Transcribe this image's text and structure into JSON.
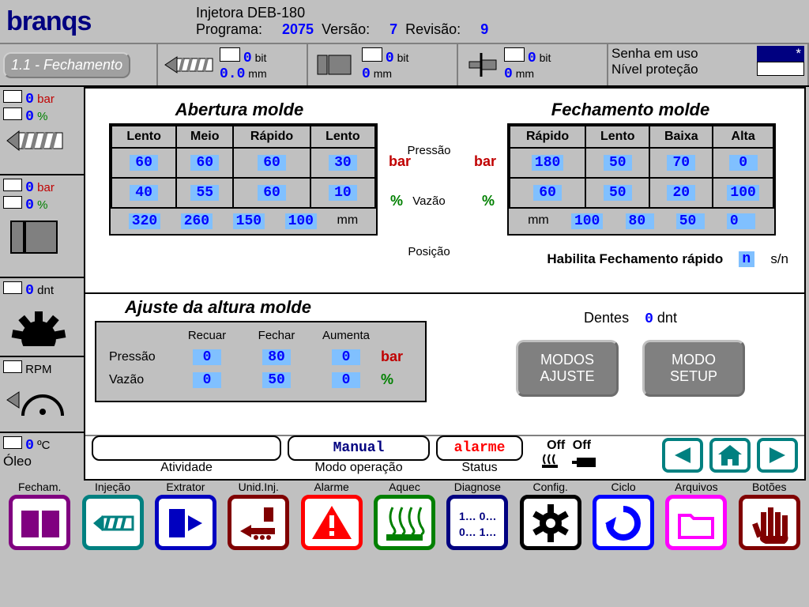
{
  "header": {
    "logo": "branqs",
    "machine": "Injetora DEB-180",
    "programa_label": "Programa:",
    "programa": "2075",
    "versao_label": "Versão:",
    "versao": "7",
    "revisao_label": "Revisão:",
    "revisao": "9"
  },
  "page_btn": "1.1 - Fechamento",
  "status_readouts": [
    {
      "v1": "0",
      "u1": "bit",
      "v2": "0.0",
      "u2": "mm",
      "icon": "screw"
    },
    {
      "v1": "0",
      "u1": "bit",
      "v2": "0",
      "u2": "mm",
      "icon": "mold"
    },
    {
      "v1": "0",
      "u1": "bit",
      "v2": "0",
      "u2": "mm",
      "icon": "eject"
    }
  ],
  "senha_label": "Senha em uso",
  "nivel_label": "Nível proteção",
  "sidebar": [
    {
      "v1": "0",
      "u1": "bar",
      "u1c": "red",
      "v2": "0",
      "u2": "%",
      "u2c": "green",
      "icon": "screw"
    },
    {
      "v1": "0",
      "u1": "bar",
      "u1c": "red",
      "v2": "0",
      "u2": "%",
      "u2c": "green",
      "icon": "mold"
    },
    {
      "v1": "0",
      "u1": "dnt",
      "icon": "gear"
    },
    {
      "u1": "RPM",
      "icon": "dial"
    }
  ],
  "abertura": {
    "title": "Abertura molde",
    "cols": [
      "Lento",
      "Meio",
      "Rápido",
      "Lento"
    ],
    "pressao": [
      "60",
      "60",
      "60",
      "30"
    ],
    "vazao": [
      "40",
      "55",
      "60",
      "10"
    ],
    "pos": [
      "320",
      "260",
      "150",
      "100"
    ],
    "unit_p": "bar",
    "unit_v": "%",
    "unit_pos": "mm"
  },
  "mid_labels": {
    "p": "Pressão",
    "v": "Vazão",
    "pos": "Posição"
  },
  "fechamento": {
    "title": "Fechamento molde",
    "cols": [
      "Rápido",
      "Lento",
      "Baixa",
      "Alta"
    ],
    "pressao": [
      "180",
      "50",
      "70",
      "0"
    ],
    "vazao": [
      "60",
      "50",
      "20",
      "100"
    ],
    "pos": [
      "100",
      "80",
      "50",
      "0"
    ],
    "unit_p": "bar",
    "unit_v": "%",
    "unit_pos": "mm"
  },
  "habilita": {
    "label": "Habilita Fechamento rápido",
    "val": "n",
    "unit": "s/n"
  },
  "ajuste": {
    "title": "Ajuste da altura molde",
    "cols": [
      "Recuar",
      "Fechar",
      "Aumenta"
    ],
    "row_p": "Pressão",
    "row_v": "Vazão",
    "pressao": [
      "0",
      "80",
      "0"
    ],
    "vazao": [
      "0",
      "50",
      "0"
    ],
    "unit_p": "bar",
    "unit_v": "%"
  },
  "dentes": {
    "label": "Dentes",
    "val": "0",
    "unit": "dnt"
  },
  "modos_btn": "MODOS AJUSTE",
  "modo_setup_btn": "MODO SETUP",
  "oleo": {
    "val": "0",
    "unit": "ºC",
    "label": "Óleo"
  },
  "atividade": {
    "label": "Atividade",
    "val": ""
  },
  "modo_op": {
    "label": "Modo operação",
    "val": "Manual"
  },
  "status": {
    "label": "Status",
    "val": "alarme"
  },
  "heat": {
    "a": "Off",
    "b": "Off"
  },
  "nav": [
    {
      "label": "Fecham.",
      "color": "#800080"
    },
    {
      "label": "Injeção",
      "color": "#008080"
    },
    {
      "label": "Extrator",
      "color": "#0000c0"
    },
    {
      "label": "Unid.Inj.",
      "color": "#800000"
    },
    {
      "label": "Alarme",
      "color": "#ff0000"
    },
    {
      "label": "Aquec",
      "color": "#008000"
    },
    {
      "label": "Diagnose",
      "color": "#000080"
    },
    {
      "label": "Config.",
      "color": "#000000"
    },
    {
      "label": "Ciclo",
      "color": "#0000ff"
    },
    {
      "label": "Arquivos",
      "color": "#ff00ff"
    },
    {
      "label": "Botões",
      "color": "#800000"
    }
  ],
  "colors": {
    "bg": "#c0c0c0",
    "blue": "#0000ff",
    "red": "#c00000",
    "green": "#008000",
    "cell": "#80c0ff",
    "teal": "#008080",
    "navy": "#000080"
  }
}
